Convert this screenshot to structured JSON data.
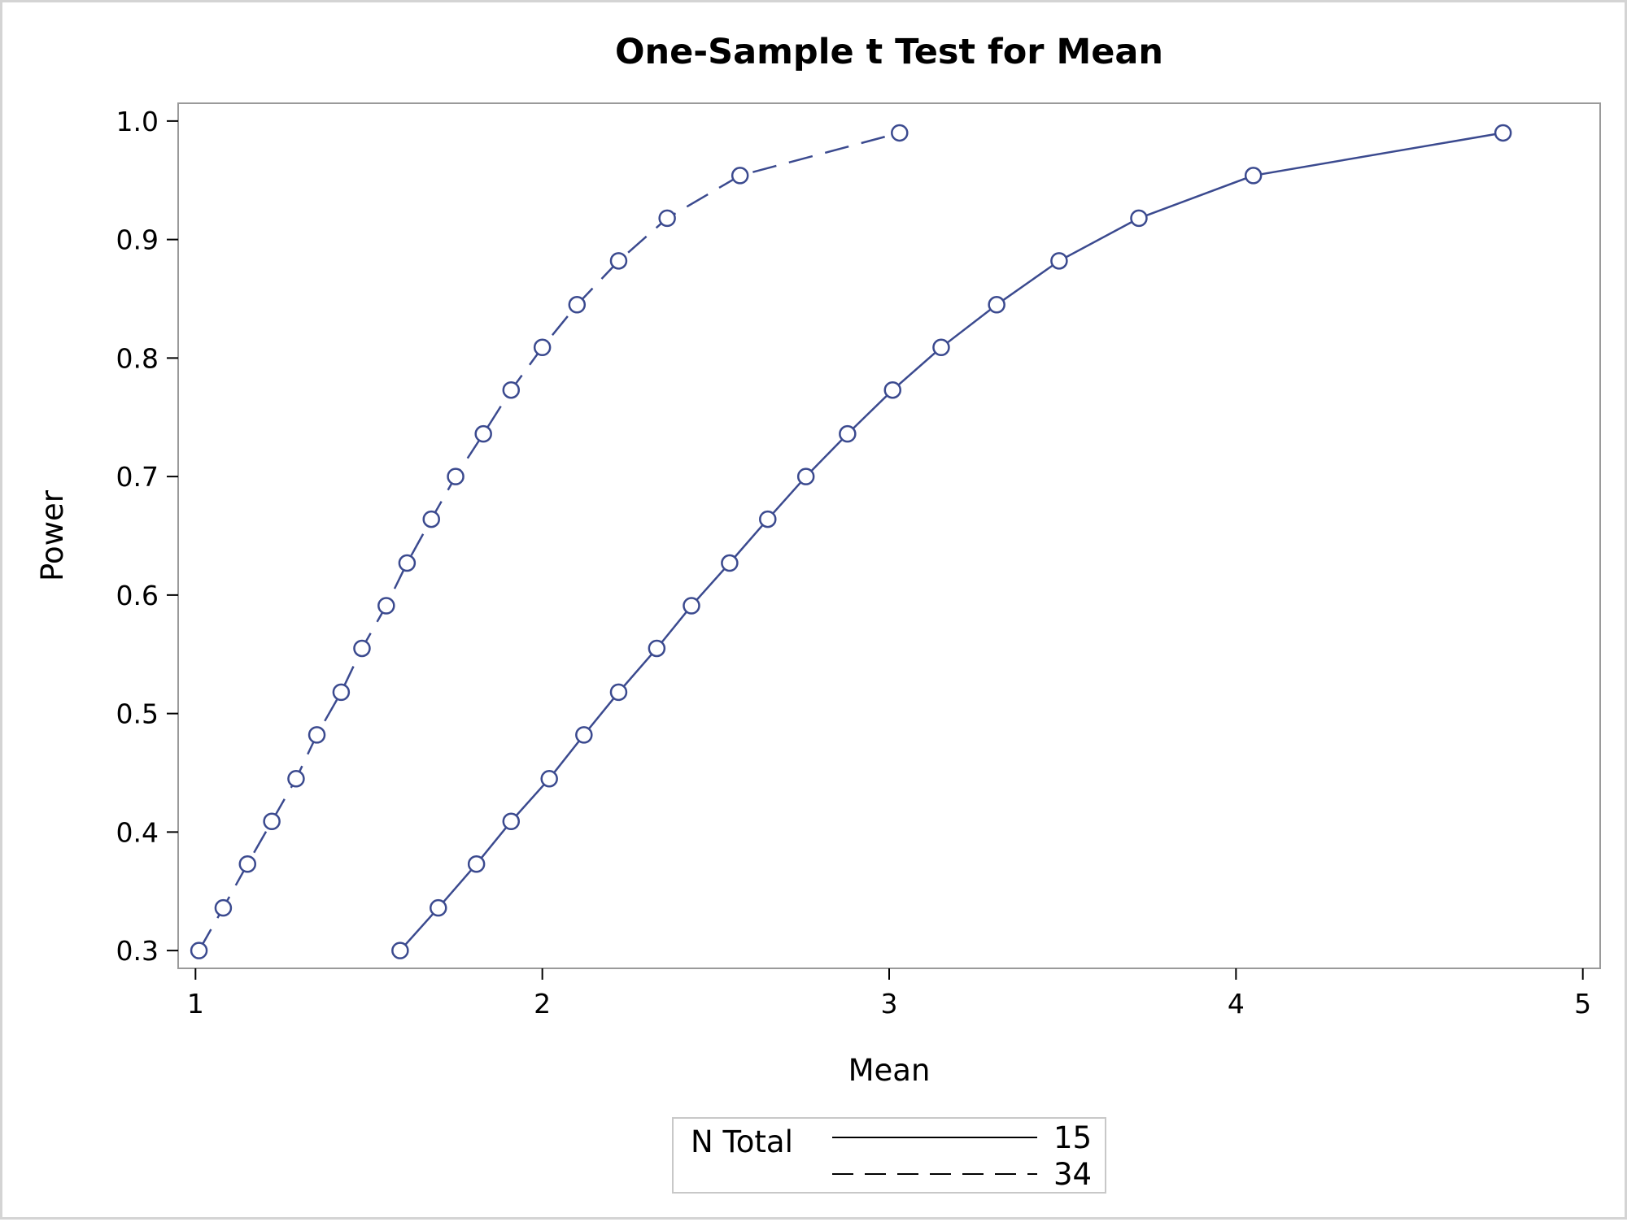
{
  "chart_data": {
    "type": "line",
    "title": "One-Sample t Test for Mean",
    "xlabel": "Mean",
    "ylabel": "Power",
    "xlim": [
      0.95,
      5.05
    ],
    "ylim": [
      0.285,
      1.015
    ],
    "xticks": [
      "1",
      "2",
      "3",
      "4",
      "5"
    ],
    "yticks": [
      "0.3",
      "0.4",
      "0.5",
      "0.6",
      "0.7",
      "0.8",
      "0.9",
      "1.0"
    ],
    "grid": false,
    "legend": {
      "title": "N Total",
      "position": "bottom-center"
    },
    "color": "#3b4a8f",
    "series": [
      {
        "name": "15",
        "line_style": "solid",
        "points": [
          [
            1.59,
            0.3
          ],
          [
            1.7,
            0.336
          ],
          [
            1.81,
            0.373
          ],
          [
            1.91,
            0.409
          ],
          [
            2.02,
            0.445
          ],
          [
            2.12,
            0.482
          ],
          [
            2.22,
            0.518
          ],
          [
            2.33,
            0.555
          ],
          [
            2.43,
            0.591
          ],
          [
            2.54,
            0.627
          ],
          [
            2.65,
            0.664
          ],
          [
            2.76,
            0.7
          ],
          [
            2.88,
            0.736
          ],
          [
            3.01,
            0.773
          ],
          [
            3.15,
            0.809
          ],
          [
            3.31,
            0.845
          ],
          [
            3.49,
            0.882
          ],
          [
            3.72,
            0.918
          ],
          [
            4.05,
            0.954
          ],
          [
            4.77,
            0.99
          ]
        ]
      },
      {
        "name": "34",
        "line_style": "dashed",
        "points": [
          [
            1.01,
            0.3
          ],
          [
            1.08,
            0.336
          ],
          [
            1.15,
            0.373
          ],
          [
            1.22,
            0.409
          ],
          [
            1.29,
            0.445
          ],
          [
            1.35,
            0.482
          ],
          [
            1.42,
            0.518
          ],
          [
            1.48,
            0.555
          ],
          [
            1.55,
            0.591
          ],
          [
            1.61,
            0.627
          ],
          [
            1.68,
            0.664
          ],
          [
            1.75,
            0.7
          ],
          [
            1.83,
            0.736
          ],
          [
            1.91,
            0.773
          ],
          [
            2.0,
            0.809
          ],
          [
            2.1,
            0.845
          ],
          [
            2.22,
            0.882
          ],
          [
            2.36,
            0.918
          ],
          [
            2.57,
            0.954
          ],
          [
            3.03,
            0.99
          ]
        ]
      }
    ]
  }
}
